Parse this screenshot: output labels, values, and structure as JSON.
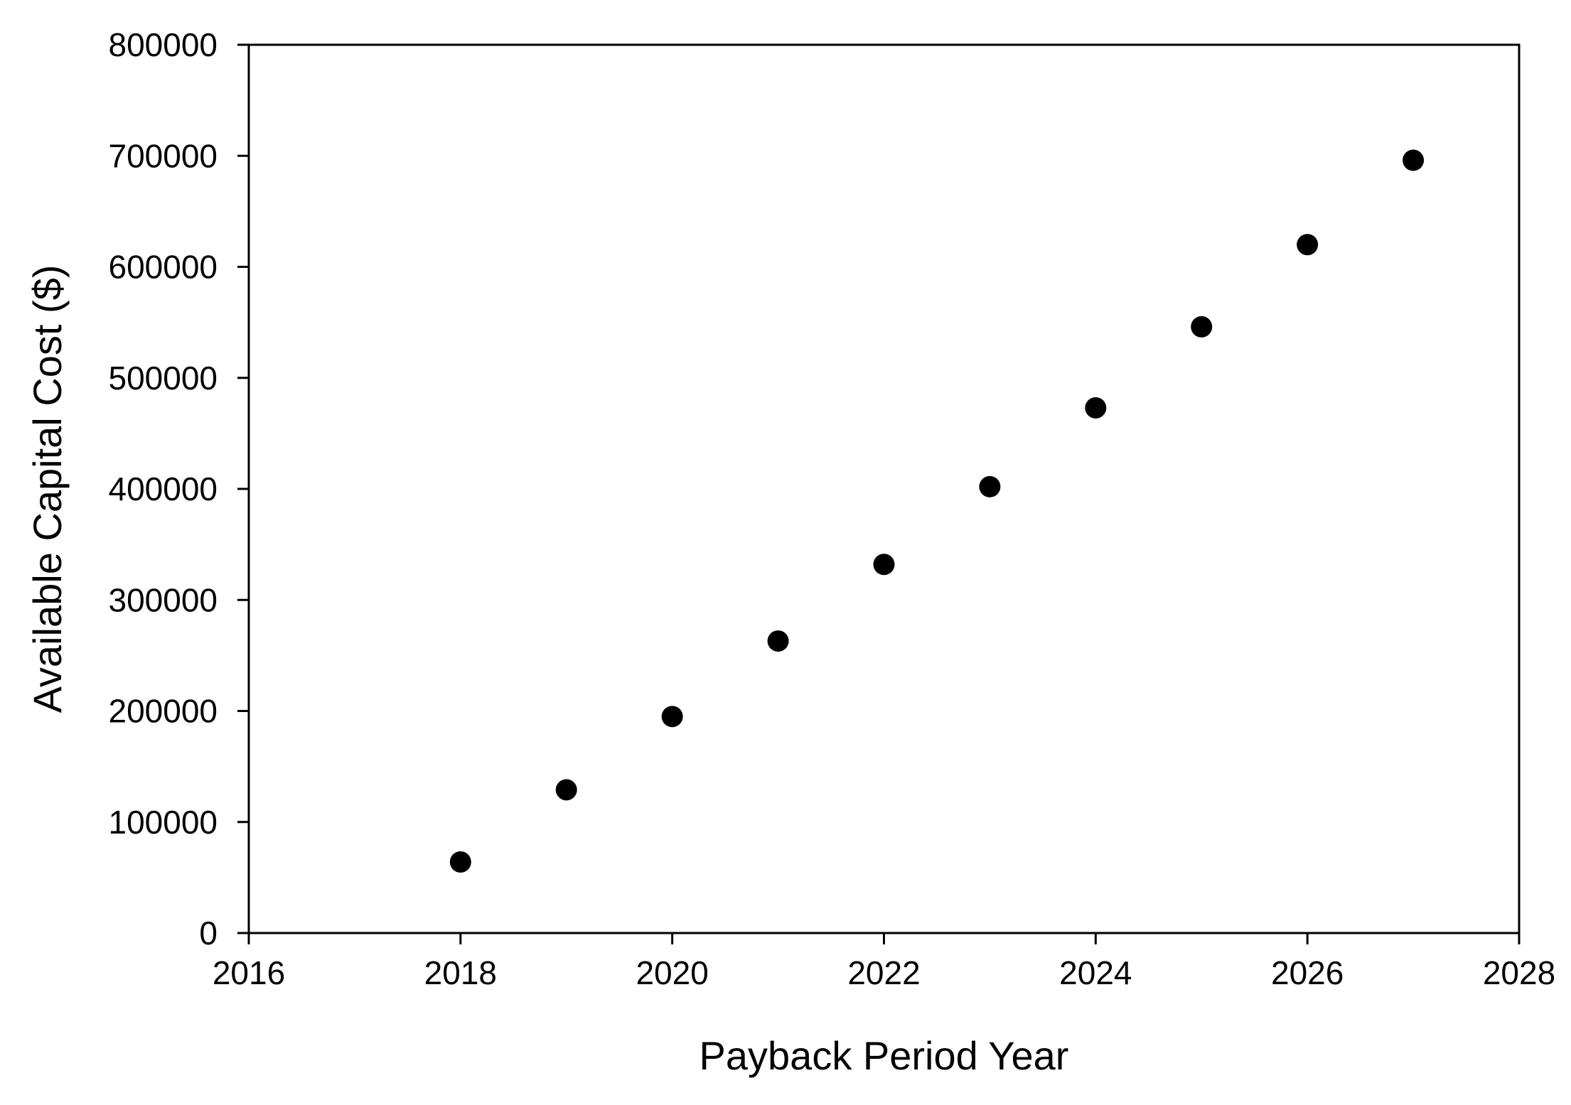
{
  "chart_data": {
    "type": "scatter",
    "title": "",
    "xlabel": "Payback Period Year",
    "ylabel": "Available Capital Cost ($)",
    "xlim": [
      2016,
      2028
    ],
    "ylim": [
      0,
      800000
    ],
    "x_ticks": [
      2016,
      2018,
      2020,
      2022,
      2024,
      2026,
      2028
    ],
    "y_ticks": [
      0,
      100000,
      200000,
      300000,
      400000,
      500000,
      600000,
      700000,
      800000
    ],
    "x_tick_labels": [
      "2016",
      "2018",
      "2020",
      "2022",
      "2024",
      "2026",
      "2028"
    ],
    "y_tick_labels": [
      "0",
      "100000",
      "200000",
      "300000",
      "400000",
      "500000",
      "600000",
      "700000",
      "800000"
    ],
    "grid": false,
    "legend": "none",
    "marker_color": "#000000",
    "series": [
      {
        "x": [
          2018,
          2019,
          2020,
          2021,
          2022,
          2023,
          2024,
          2025,
          2026,
          2027
        ],
        "y": [
          64000,
          129000,
          195000,
          263000,
          332000,
          402000,
          473000,
          546000,
          620000,
          696000
        ]
      }
    ]
  }
}
